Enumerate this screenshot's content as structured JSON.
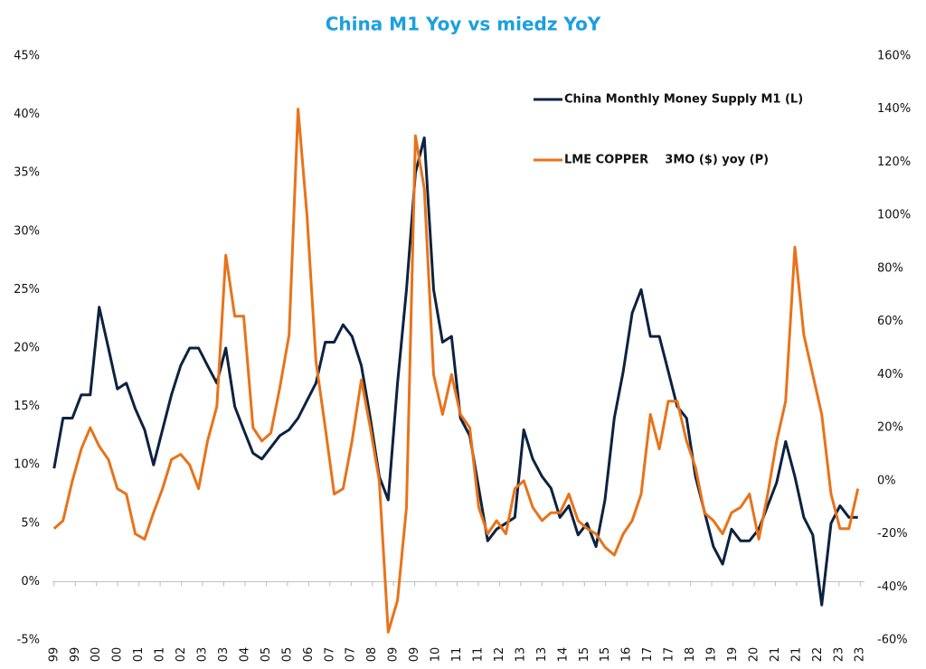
{
  "chart_data": {
    "type": "line",
    "title": "China M1 Yoy vs miedz YoY",
    "legend": "top-right",
    "xlim": [
      1999,
      2023.5
    ],
    "xticks": [
      {
        "value": 1999.05,
        "label": "99"
      },
      {
        "value": 1999.69,
        "label": "99"
      },
      {
        "value": 2000.33,
        "label": "00"
      },
      {
        "value": 2000.97,
        "label": "00"
      },
      {
        "value": 2001.61,
        "label": "01"
      },
      {
        "value": 2002.25,
        "label": "01"
      },
      {
        "value": 2002.89,
        "label": "02"
      },
      {
        "value": 2003.53,
        "label": "03"
      },
      {
        "value": 2004.17,
        "label": "03"
      },
      {
        "value": 2004.81,
        "label": "04"
      },
      {
        "value": 2005.45,
        "label": "05"
      },
      {
        "value": 2006.09,
        "label": "05"
      },
      {
        "value": 2006.73,
        "label": "06"
      },
      {
        "value": 2007.37,
        "label": "07"
      },
      {
        "value": 2008.01,
        "label": "07"
      },
      {
        "value": 2008.65,
        "label": "08"
      },
      {
        "value": 2009.29,
        "label": "09"
      },
      {
        "value": 2009.93,
        "label": "09"
      },
      {
        "value": 2010.57,
        "label": "10"
      },
      {
        "value": 2011.21,
        "label": "11"
      },
      {
        "value": 2011.85,
        "label": "11"
      },
      {
        "value": 2012.49,
        "label": "12"
      },
      {
        "value": 2013.13,
        "label": "13"
      },
      {
        "value": 2013.77,
        "label": "13"
      },
      {
        "value": 2014.41,
        "label": "14"
      },
      {
        "value": 2015.05,
        "label": "15"
      },
      {
        "value": 2015.69,
        "label": "15"
      },
      {
        "value": 2016.33,
        "label": "16"
      },
      {
        "value": 2016.97,
        "label": "17"
      },
      {
        "value": 2017.61,
        "label": "17"
      },
      {
        "value": 2018.25,
        "label": "18"
      },
      {
        "value": 2018.89,
        "label": "19"
      },
      {
        "value": 2019.53,
        "label": "19"
      },
      {
        "value": 2020.17,
        "label": "20"
      },
      {
        "value": 2020.81,
        "label": "21"
      },
      {
        "value": 2021.45,
        "label": "21"
      },
      {
        "value": 2022.09,
        "label": "22"
      },
      {
        "value": 2022.73,
        "label": "23"
      },
      {
        "value": 2023.37,
        "label": "23"
      }
    ],
    "ylim": [
      -5,
      45
    ],
    "yticks": [
      {
        "value": -5,
        "label": "-5%"
      },
      {
        "value": 0,
        "label": "0%"
      },
      {
        "value": 5,
        "label": "5%"
      },
      {
        "value": 10,
        "label": "10%"
      },
      {
        "value": 15,
        "label": "15%"
      },
      {
        "value": 20,
        "label": "20%"
      },
      {
        "value": 25,
        "label": "25%"
      },
      {
        "value": 30,
        "label": "30%"
      },
      {
        "value": 35,
        "label": "35%"
      },
      {
        "value": 40,
        "label": "40%"
      },
      {
        "value": 45,
        "label": "45%"
      }
    ],
    "y2lim": [
      -60,
      160
    ],
    "y2ticks": [
      {
        "value": -60,
        "label": "-60%"
      },
      {
        "value": -40,
        "label": "-40%"
      },
      {
        "value": -20,
        "label": "-20%"
      },
      {
        "value": 0,
        "label": "0%"
      },
      {
        "value": 20,
        "label": "20%"
      },
      {
        "value": 40,
        "label": "40%"
      },
      {
        "value": 60,
        "label": "60%"
      },
      {
        "value": 80,
        "label": "80%"
      },
      {
        "value": 100,
        "label": "100%"
      },
      {
        "value": 120,
        "label": "120%"
      },
      {
        "value": 140,
        "label": "140%"
      },
      {
        "value": 160,
        "label": "160%"
      }
    ],
    "x": [
      1999.05,
      1999.32,
      1999.6,
      1999.87,
      2000.14,
      2000.41,
      2000.69,
      2000.96,
      2001.23,
      2001.5,
      2001.78,
      2002.05,
      2002.32,
      2002.59,
      2002.87,
      2003.14,
      2003.41,
      2003.68,
      2003.96,
      2004.23,
      2004.5,
      2004.77,
      2005.05,
      2005.32,
      2005.59,
      2005.86,
      2006.14,
      2006.41,
      2006.68,
      2006.95,
      2007.23,
      2007.5,
      2007.77,
      2008.04,
      2008.32,
      2008.59,
      2008.86,
      2009.13,
      2009.41,
      2009.68,
      2009.95,
      2010.22,
      2010.5,
      2010.77,
      2011.04,
      2011.31,
      2011.59,
      2011.86,
      2012.13,
      2012.4,
      2012.68,
      2012.95,
      2013.22,
      2013.49,
      2013.77,
      2014.04,
      2014.31,
      2014.58,
      2014.86,
      2015.13,
      2015.4,
      2015.67,
      2015.95,
      2016.22,
      2016.49,
      2016.76,
      2017.04,
      2017.31,
      2017.58,
      2017.85,
      2018.13,
      2018.4,
      2018.67,
      2018.94,
      2019.22,
      2019.49,
      2019.76,
      2020.03,
      2020.31,
      2020.58,
      2020.85,
      2021.12,
      2021.4,
      2021.67,
      2021.94,
      2022.21,
      2022.49,
      2022.76,
      2023.03,
      2023.3
    ],
    "series": [
      {
        "name": "China Monthly Money Supply M1 (L)",
        "color": "#0d2240",
        "axis": "y",
        "values": [
          9.7,
          14,
          14,
          16,
          16,
          23.5,
          20,
          16.5,
          17,
          14.8,
          13,
          10,
          13,
          16,
          18.5,
          20,
          20,
          18.5,
          17,
          20,
          15,
          13,
          11,
          10.5,
          11.5,
          12.5,
          13,
          14,
          15.5,
          17,
          20.5,
          20.5,
          22,
          21,
          18.5,
          14,
          9,
          7,
          17,
          25,
          35,
          38,
          25,
          20.5,
          21,
          14,
          12.5,
          8,
          3.5,
          4.5,
          5,
          5.5,
          13,
          10.5,
          9,
          8,
          5.5,
          6.5,
          4,
          5,
          3,
          7,
          14,
          18,
          23,
          25,
          21,
          21,
          18,
          15,
          14,
          9,
          6,
          3,
          1.5,
          4.5,
          3.5,
          3.5,
          4.5,
          6.5,
          8.5,
          12,
          9,
          5.5,
          4,
          -2,
          5,
          6.5,
          5.5,
          5.5
        ]
      },
      {
        "name": "LME COPPER    3MO ($) yoy (P)",
        "color": "#e8731a",
        "axis": "y2",
        "values": [
          -18,
          -15,
          0,
          12,
          20,
          13,
          8,
          -3,
          -5,
          -20,
          -22,
          -12,
          -3,
          8,
          10,
          6,
          -3,
          15,
          28,
          85,
          62,
          62,
          20,
          15,
          18,
          35,
          55,
          140,
          100,
          45,
          20,
          -5,
          -3,
          15,
          38,
          20,
          0,
          -57,
          -45,
          -10,
          130,
          110,
          40,
          25,
          40,
          25,
          20,
          -10,
          -20,
          -15,
          -20,
          -3,
          0,
          -10,
          -15,
          -12,
          -12,
          -5,
          -15,
          -18,
          -20,
          -25,
          -28,
          -20,
          -15,
          -5,
          25,
          12,
          30,
          30,
          15,
          5,
          -12,
          -15,
          -20,
          -12,
          -10,
          -5,
          -22,
          -5,
          15,
          30,
          88,
          55,
          40,
          25,
          -5,
          -18,
          -18,
          -3
        ]
      }
    ]
  }
}
